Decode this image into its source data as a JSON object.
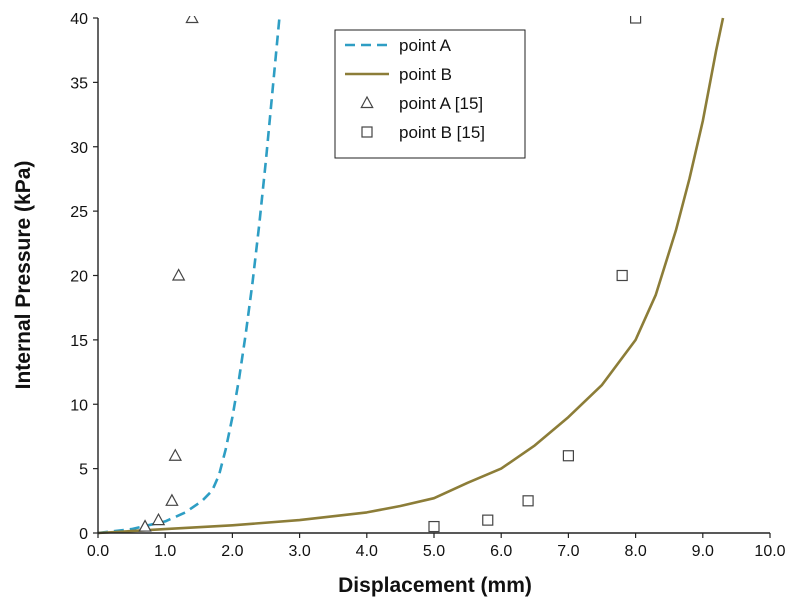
{
  "chart_data": {
    "type": "line",
    "title": "",
    "xlabel": "Displacement (mm)",
    "ylabel": "Internal Pressure (kPa)",
    "xlim": [
      0,
      10
    ],
    "ylim": [
      0,
      40
    ],
    "x_ticks": [
      "0.0",
      "1.0",
      "2.0",
      "3.0",
      "4.0",
      "5.0",
      "6.0",
      "7.0",
      "8.0",
      "9.0",
      "10.0"
    ],
    "y_ticks": [
      "0",
      "5",
      "10",
      "15",
      "20",
      "25",
      "30",
      "35",
      "40"
    ],
    "grid": false,
    "legend_position": "top-center",
    "series": [
      {
        "name": "point A",
        "style": "dashed-line",
        "color": "#2e9ec4",
        "x": [
          0,
          0.5,
          1.0,
          1.3,
          1.55,
          1.7,
          1.8,
          1.9,
          2.0,
          2.1,
          2.2,
          2.3,
          2.4,
          2.5,
          2.6,
          2.7
        ],
        "y": [
          0,
          0.3,
          0.9,
          1.6,
          2.5,
          3.3,
          4.5,
          6.5,
          9.0,
          12.0,
          15.5,
          19.5,
          24.0,
          29.0,
          34.5,
          40.0
        ]
      },
      {
        "name": "point B",
        "style": "solid-line",
        "color": "#8c7d38",
        "x": [
          0,
          1.0,
          2.0,
          3.0,
          4.0,
          4.5,
          5.0,
          5.5,
          6.0,
          6.5,
          7.0,
          7.5,
          8.0,
          8.3,
          8.6,
          8.8,
          9.0,
          9.2,
          9.3
        ],
        "y": [
          0,
          0.3,
          0.6,
          1.0,
          1.6,
          2.1,
          2.7,
          3.9,
          5.0,
          6.8,
          9.0,
          11.5,
          15.0,
          18.5,
          23.5,
          27.5,
          32.0,
          37.5,
          40.0
        ]
      },
      {
        "name": "point A [15]",
        "style": "triangle-marker",
        "color": "#444444",
        "x": [
          0.7,
          0.9,
          1.1,
          1.15,
          1.2,
          1.4
        ],
        "y": [
          0.5,
          1.0,
          2.5,
          6.0,
          20.0,
          40.0
        ]
      },
      {
        "name": "point B [15]",
        "style": "square-marker",
        "color": "#444444",
        "x": [
          5.0,
          5.8,
          6.4,
          7.0,
          7.8,
          8.0
        ],
        "y": [
          0.5,
          1.0,
          2.5,
          6.0,
          20.0,
          40.0
        ]
      }
    ]
  }
}
